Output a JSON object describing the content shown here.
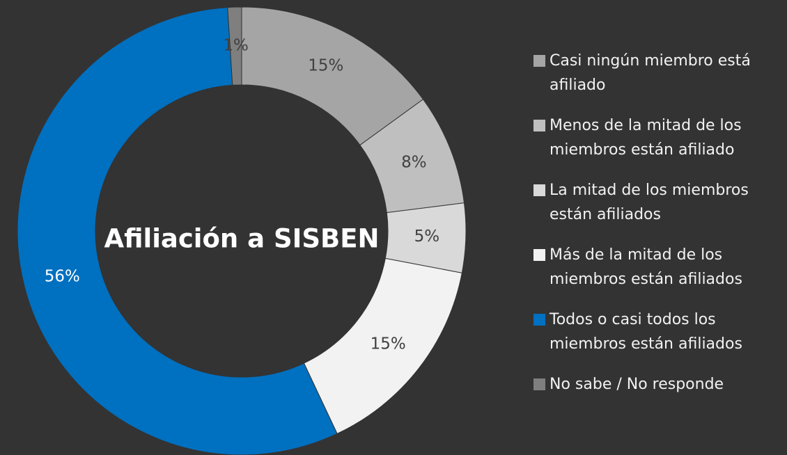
{
  "chart_data": {
    "type": "donut",
    "title": "Afiliación a SISBEN",
    "categories": [
      "Casi ningún miembro está afiliado",
      "Menos de la mitad de los miembros están afiliado",
      "La mitad de los miembros están afiliados",
      "Más de la mitad de los miembros están afiliados",
      "Todos o casi todos los miembros están afiliados",
      "No sabe / No responde"
    ],
    "values": [
      15,
      8,
      5,
      15,
      56,
      1
    ],
    "value_labels": [
      "15%",
      "8%",
      "5%",
      "15%",
      "56%",
      "1%"
    ],
    "colors": [
      "#a5a5a5",
      "#bfbfbf",
      "#d9d9d9",
      "#f2f2f2",
      "#0070c0",
      "#7f7f7f"
    ],
    "value_label_colors": [
      "#404040",
      "#404040",
      "#404040",
      "#404040",
      "#ffffff",
      "#404040"
    ],
    "legend": "right"
  }
}
